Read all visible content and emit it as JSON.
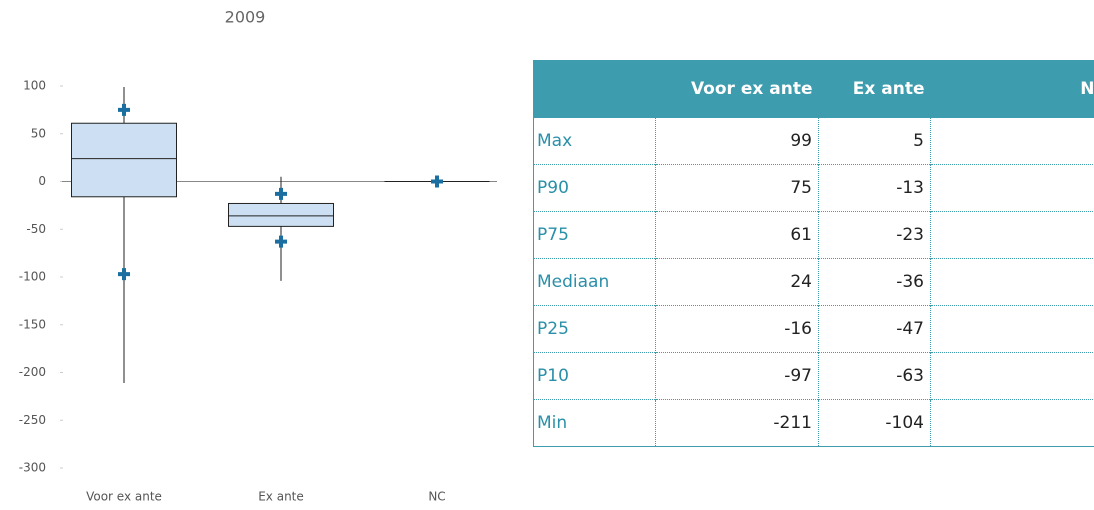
{
  "chart_data": {
    "type": "box",
    "title": "2009",
    "categories": [
      "Voor ex ante",
      "Ex ante",
      "NC"
    ],
    "stats": [
      "Max",
      "P90",
      "P75",
      "Mediaan",
      "P25",
      "P10",
      "Min"
    ],
    "values": [
      [
        99,
        75,
        61,
        24,
        -16,
        -97,
        -211
      ],
      [
        5,
        -13,
        -23,
        -36,
        -47,
        -63,
        -104
      ],
      [
        0,
        0,
        0,
        0,
        0,
        0,
        0
      ]
    ],
    "box_color": "#cddff3",
    "marker_color": "#1a6fa0",
    "header_color": "#3d9cae",
    "ylim": [
      -300,
      100
    ],
    "yticks": [
      100,
      50,
      0,
      -50,
      -100,
      -150,
      -200,
      -250,
      -300
    ]
  }
}
